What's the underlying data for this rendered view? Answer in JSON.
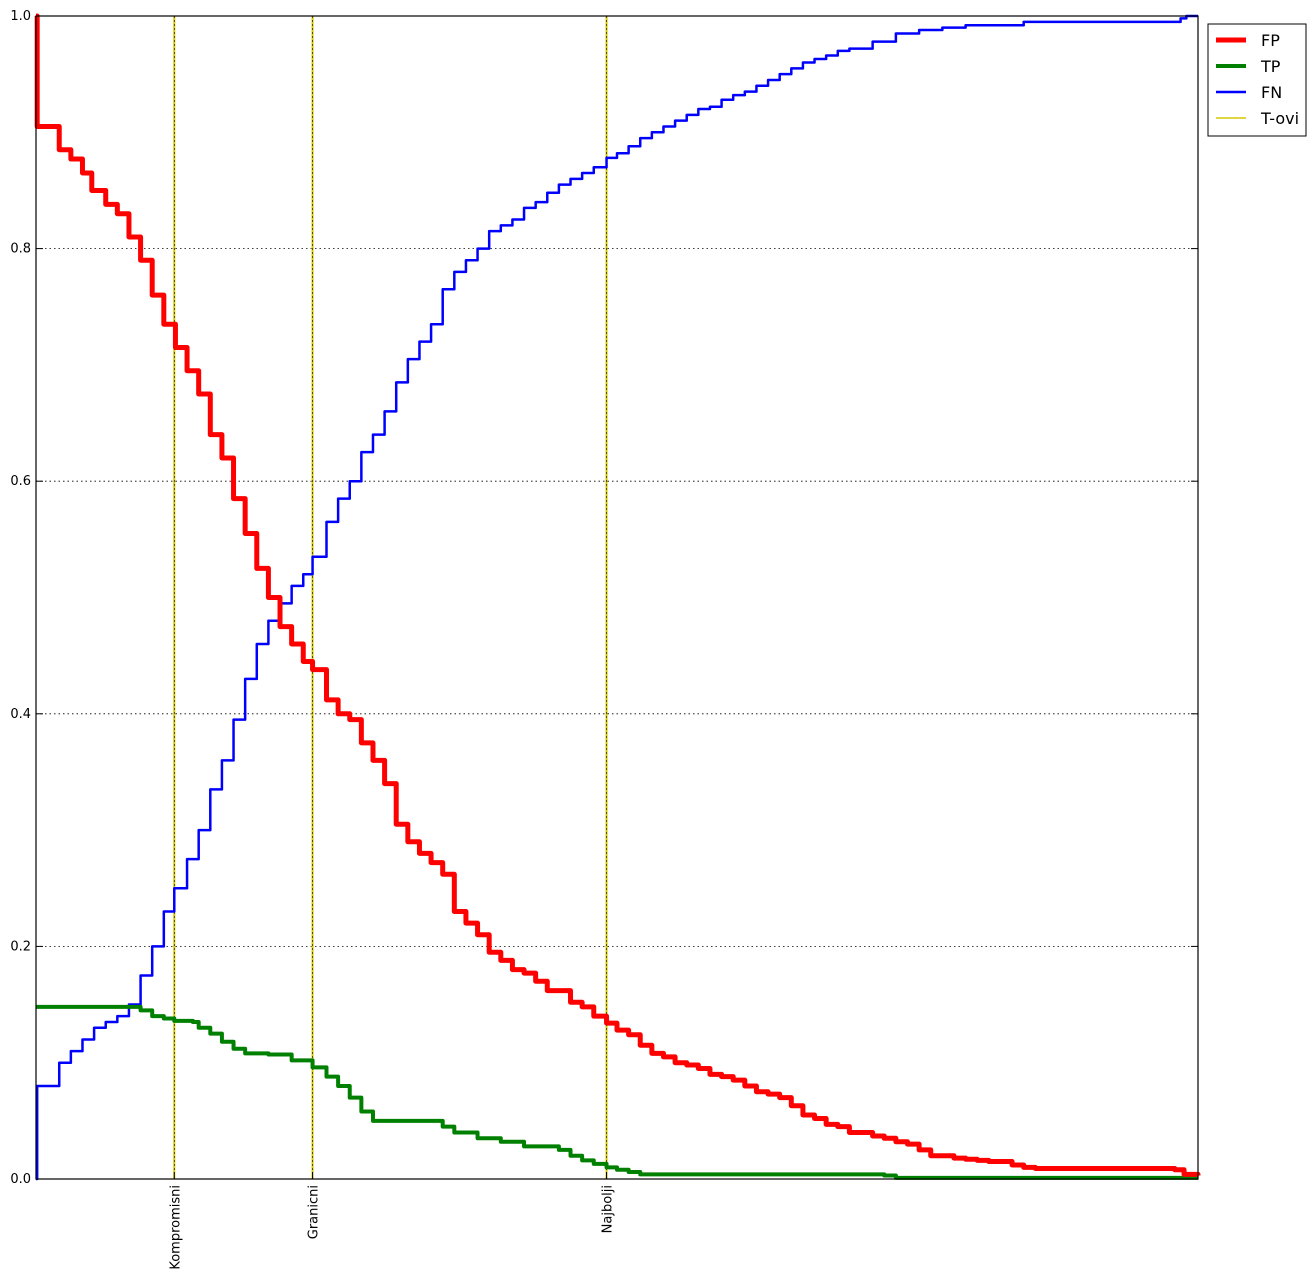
{
  "chart_data": {
    "type": "line",
    "xlim": [
      0,
      1
    ],
    "ylim": [
      0,
      1
    ],
    "yticks": [
      "0.0",
      "0.2",
      "0.4",
      "0.6",
      "0.8",
      "1.0"
    ],
    "ytick_values": [
      0,
      0.2,
      0.4,
      0.6,
      0.8,
      1.0
    ],
    "grid": "y dotted",
    "legend_position": "outside top-right",
    "vertical_lines": {
      "name": "T-ovi",
      "color": "#d4c800",
      "lines": [
        {
          "x": 0.119,
          "label": "Kompromisni"
        },
        {
          "x": 0.238,
          "label": "Granicni"
        },
        {
          "x": 0.491,
          "label": "Najbolji"
        }
      ]
    },
    "series": [
      {
        "name": "FP",
        "color": "#ff0000",
        "width": 5,
        "points": [
          [
            0,
            1.0
          ],
          [
            0.001,
            0.905
          ],
          [
            0.013,
            0.905
          ],
          [
            0.02,
            0.885
          ],
          [
            0.03,
            0.877
          ],
          [
            0.04,
            0.865
          ],
          [
            0.048,
            0.85
          ],
          [
            0.06,
            0.838
          ],
          [
            0.07,
            0.83
          ],
          [
            0.08,
            0.81
          ],
          [
            0.09,
            0.79
          ],
          [
            0.1,
            0.76
          ],
          [
            0.11,
            0.735
          ],
          [
            0.12,
            0.715
          ],
          [
            0.13,
            0.695
          ],
          [
            0.14,
            0.675
          ],
          [
            0.15,
            0.64
          ],
          [
            0.16,
            0.62
          ],
          [
            0.17,
            0.585
          ],
          [
            0.18,
            0.555
          ],
          [
            0.19,
            0.525
          ],
          [
            0.2,
            0.5
          ],
          [
            0.21,
            0.475
          ],
          [
            0.22,
            0.46
          ],
          [
            0.23,
            0.445
          ],
          [
            0.238,
            0.438
          ],
          [
            0.25,
            0.412
          ],
          [
            0.26,
            0.4
          ],
          [
            0.27,
            0.395
          ],
          [
            0.28,
            0.375
          ],
          [
            0.29,
            0.36
          ],
          [
            0.3,
            0.34
          ],
          [
            0.31,
            0.305
          ],
          [
            0.32,
            0.29
          ],
          [
            0.33,
            0.28
          ],
          [
            0.34,
            0.272
          ],
          [
            0.35,
            0.262
          ],
          [
            0.36,
            0.23
          ],
          [
            0.37,
            0.22
          ],
          [
            0.38,
            0.21
          ],
          [
            0.39,
            0.195
          ],
          [
            0.4,
            0.188
          ],
          [
            0.41,
            0.18
          ],
          [
            0.42,
            0.177
          ],
          [
            0.43,
            0.17
          ],
          [
            0.44,
            0.162
          ],
          [
            0.45,
            0.162
          ],
          [
            0.46,
            0.152
          ],
          [
            0.47,
            0.148
          ],
          [
            0.48,
            0.14
          ],
          [
            0.491,
            0.134
          ],
          [
            0.5,
            0.128
          ],
          [
            0.51,
            0.124
          ],
          [
            0.52,
            0.115
          ],
          [
            0.53,
            0.108
          ],
          [
            0.54,
            0.105
          ],
          [
            0.55,
            0.1
          ],
          [
            0.56,
            0.098
          ],
          [
            0.57,
            0.095
          ],
          [
            0.58,
            0.09
          ],
          [
            0.59,
            0.088
          ],
          [
            0.6,
            0.085
          ],
          [
            0.61,
            0.08
          ],
          [
            0.62,
            0.075
          ],
          [
            0.63,
            0.073
          ],
          [
            0.64,
            0.07
          ],
          [
            0.65,
            0.063
          ],
          [
            0.66,
            0.055
          ],
          [
            0.67,
            0.052
          ],
          [
            0.68,
            0.047
          ],
          [
            0.69,
            0.045
          ],
          [
            0.7,
            0.04
          ],
          [
            0.71,
            0.04
          ],
          [
            0.72,
            0.037
          ],
          [
            0.73,
            0.035
          ],
          [
            0.74,
            0.032
          ],
          [
            0.75,
            0.03
          ],
          [
            0.76,
            0.025
          ],
          [
            0.77,
            0.02
          ],
          [
            0.78,
            0.02
          ],
          [
            0.79,
            0.018
          ],
          [
            0.8,
            0.017
          ],
          [
            0.81,
            0.016
          ],
          [
            0.82,
            0.015
          ],
          [
            0.83,
            0.015
          ],
          [
            0.84,
            0.012
          ],
          [
            0.85,
            0.01
          ],
          [
            0.86,
            0.009
          ],
          [
            0.87,
            0.009
          ],
          [
            0.88,
            0.009
          ],
          [
            0.9,
            0.009
          ],
          [
            0.92,
            0.009
          ],
          [
            0.94,
            0.009
          ],
          [
            0.96,
            0.009
          ],
          [
            0.98,
            0.008
          ],
          [
            0.988,
            0.004
          ],
          [
            1.0,
            0.003
          ]
        ]
      },
      {
        "name": "TP",
        "color": "#008000",
        "width": 4,
        "points": [
          [
            0,
            0.148
          ],
          [
            0.08,
            0.148
          ],
          [
            0.09,
            0.145
          ],
          [
            0.1,
            0.14
          ],
          [
            0.11,
            0.138
          ],
          [
            0.119,
            0.136
          ],
          [
            0.135,
            0.135
          ],
          [
            0.14,
            0.13
          ],
          [
            0.15,
            0.125
          ],
          [
            0.16,
            0.118
          ],
          [
            0.17,
            0.112
          ],
          [
            0.18,
            0.108
          ],
          [
            0.2,
            0.107
          ],
          [
            0.22,
            0.102
          ],
          [
            0.238,
            0.096
          ],
          [
            0.25,
            0.088
          ],
          [
            0.26,
            0.08
          ],
          [
            0.27,
            0.07
          ],
          [
            0.28,
            0.058
          ],
          [
            0.29,
            0.05
          ],
          [
            0.33,
            0.05
          ],
          [
            0.35,
            0.045
          ],
          [
            0.36,
            0.04
          ],
          [
            0.38,
            0.035
          ],
          [
            0.4,
            0.032
          ],
          [
            0.42,
            0.028
          ],
          [
            0.45,
            0.025
          ],
          [
            0.46,
            0.02
          ],
          [
            0.47,
            0.016
          ],
          [
            0.48,
            0.013
          ],
          [
            0.491,
            0.01
          ],
          [
            0.5,
            0.008
          ],
          [
            0.51,
            0.006
          ],
          [
            0.52,
            0.004
          ],
          [
            0.6,
            0.004
          ],
          [
            0.7,
            0.004
          ],
          [
            0.73,
            0.003
          ],
          [
            0.74,
            0.001
          ],
          [
            1.0,
            0.001
          ]
        ]
      },
      {
        "name": "FN",
        "color": "#0000ff",
        "width": 2.5,
        "points": [
          [
            0,
            0
          ],
          [
            0.001,
            0.08
          ],
          [
            0.013,
            0.08
          ],
          [
            0.02,
            0.1
          ],
          [
            0.03,
            0.11
          ],
          [
            0.04,
            0.12
          ],
          [
            0.05,
            0.13
          ],
          [
            0.06,
            0.135
          ],
          [
            0.07,
            0.14
          ],
          [
            0.08,
            0.15
          ],
          [
            0.09,
            0.175
          ],
          [
            0.1,
            0.2
          ],
          [
            0.11,
            0.23
          ],
          [
            0.119,
            0.25
          ],
          [
            0.13,
            0.275
          ],
          [
            0.14,
            0.3
          ],
          [
            0.15,
            0.335
          ],
          [
            0.16,
            0.36
          ],
          [
            0.17,
            0.395
          ],
          [
            0.18,
            0.43
          ],
          [
            0.19,
            0.46
          ],
          [
            0.2,
            0.48
          ],
          [
            0.21,
            0.495
          ],
          [
            0.22,
            0.51
          ],
          [
            0.23,
            0.52
          ],
          [
            0.238,
            0.535
          ],
          [
            0.25,
            0.565
          ],
          [
            0.26,
            0.585
          ],
          [
            0.27,
            0.6
          ],
          [
            0.28,
            0.625
          ],
          [
            0.29,
            0.64
          ],
          [
            0.3,
            0.66
          ],
          [
            0.31,
            0.685
          ],
          [
            0.32,
            0.705
          ],
          [
            0.33,
            0.72
          ],
          [
            0.34,
            0.735
          ],
          [
            0.35,
            0.765
          ],
          [
            0.36,
            0.78
          ],
          [
            0.37,
            0.79
          ],
          [
            0.38,
            0.8
          ],
          [
            0.39,
            0.815
          ],
          [
            0.4,
            0.82
          ],
          [
            0.41,
            0.825
          ],
          [
            0.42,
            0.835
          ],
          [
            0.43,
            0.84
          ],
          [
            0.44,
            0.848
          ],
          [
            0.45,
            0.855
          ],
          [
            0.46,
            0.86
          ],
          [
            0.47,
            0.865
          ],
          [
            0.48,
            0.87
          ],
          [
            0.491,
            0.878
          ],
          [
            0.5,
            0.882
          ],
          [
            0.51,
            0.888
          ],
          [
            0.52,
            0.895
          ],
          [
            0.53,
            0.9
          ],
          [
            0.54,
            0.905
          ],
          [
            0.55,
            0.91
          ],
          [
            0.56,
            0.915
          ],
          [
            0.57,
            0.92
          ],
          [
            0.58,
            0.922
          ],
          [
            0.59,
            0.928
          ],
          [
            0.6,
            0.932
          ],
          [
            0.61,
            0.935
          ],
          [
            0.62,
            0.94
          ],
          [
            0.63,
            0.945
          ],
          [
            0.64,
            0.95
          ],
          [
            0.65,
            0.955
          ],
          [
            0.66,
            0.96
          ],
          [
            0.67,
            0.963
          ],
          [
            0.68,
            0.966
          ],
          [
            0.69,
            0.97
          ],
          [
            0.7,
            0.972
          ],
          [
            0.72,
            0.978
          ],
          [
            0.74,
            0.985
          ],
          [
            0.76,
            0.988
          ],
          [
            0.78,
            0.99
          ],
          [
            0.8,
            0.992
          ],
          [
            0.85,
            0.995
          ],
          [
            0.9,
            0.995
          ],
          [
            0.95,
            0.995
          ],
          [
            0.985,
            0.998
          ],
          [
            0.99,
            1.0
          ],
          [
            1.0,
            1.0
          ]
        ]
      }
    ]
  }
}
